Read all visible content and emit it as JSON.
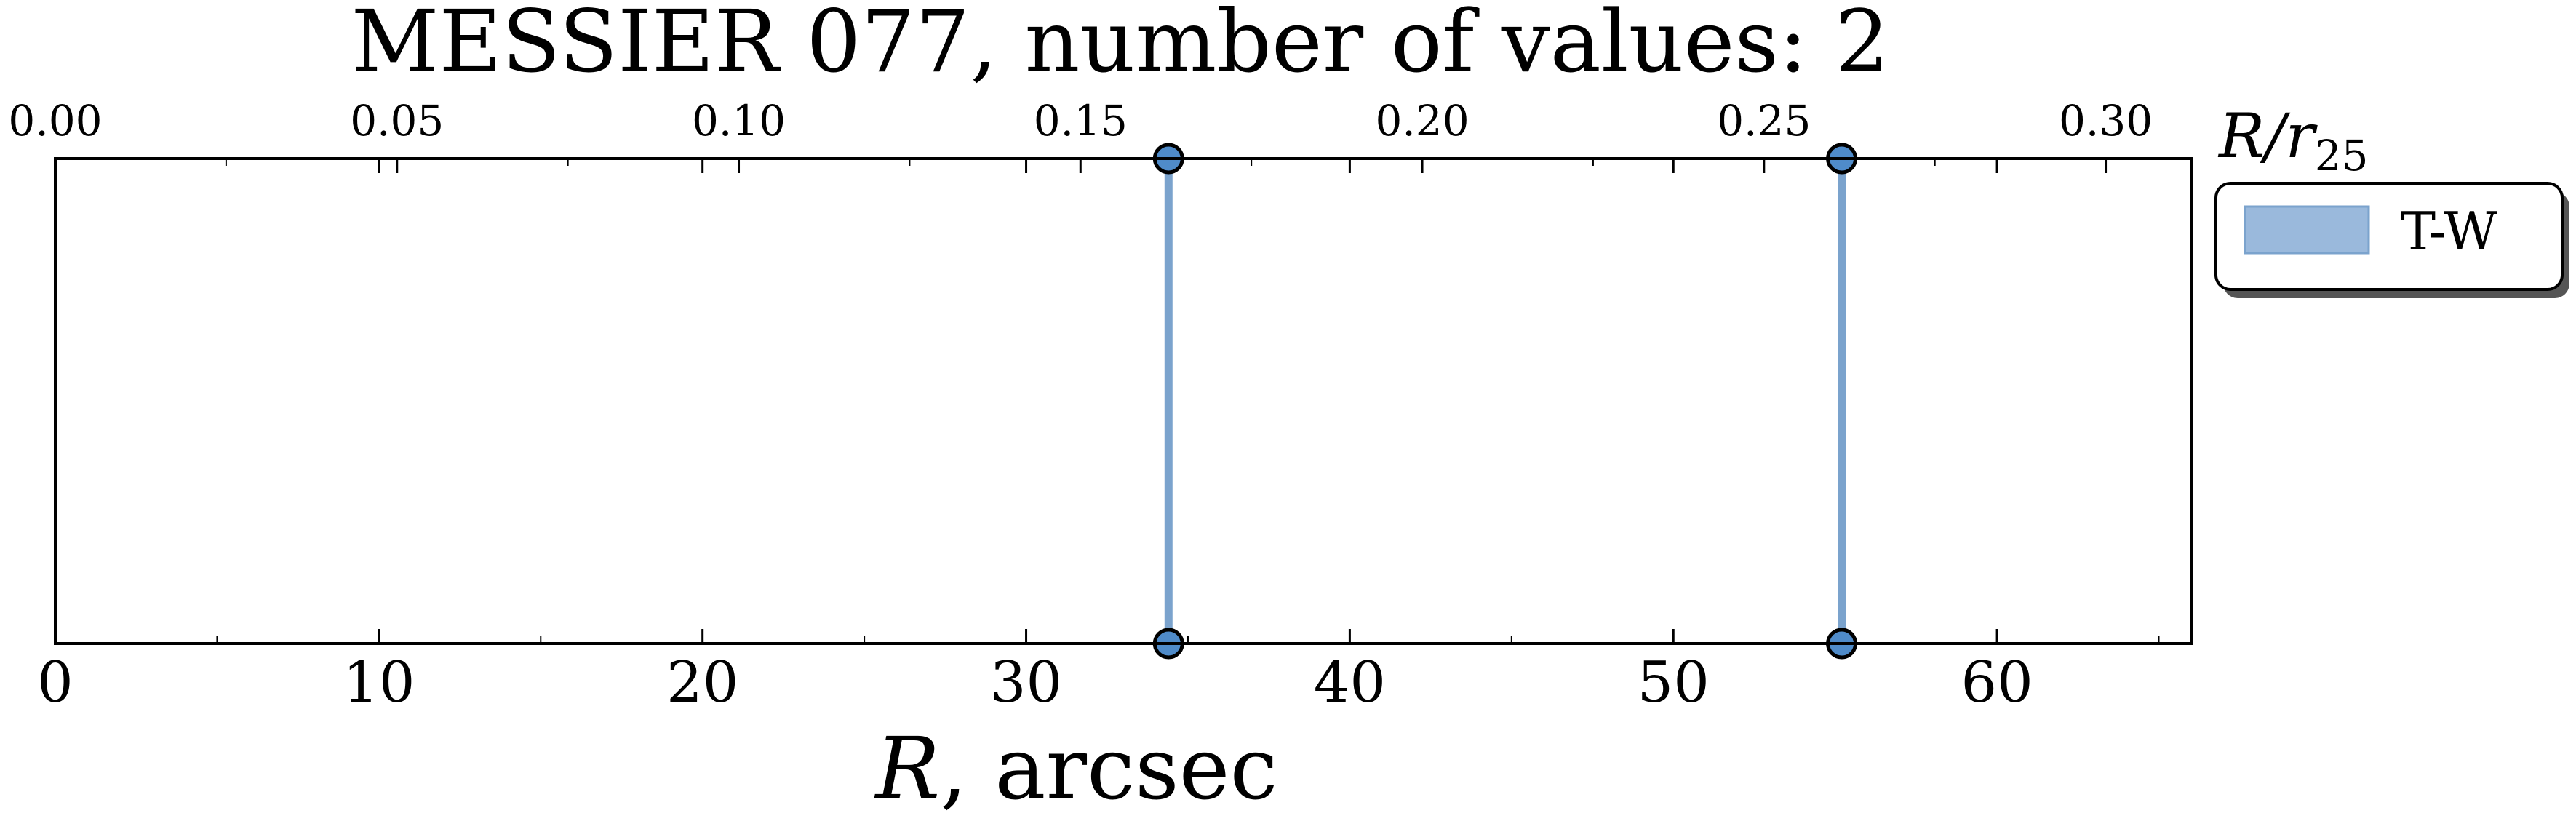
{
  "chart_data": {
    "type": "line",
    "title": "MESSIER 077, number of values: 2",
    "xlabel": {
      "symbol": "R",
      "unit": ", arcsec"
    },
    "xlim": [
      0,
      66
    ],
    "x_ticks": [
      0,
      10,
      20,
      30,
      40,
      50,
      60
    ],
    "top_axis": {
      "label": {
        "symbol": "R/r",
        "subscript": "25"
      },
      "xlim": [
        0,
        0.3125
      ],
      "ticks": [
        "0.00",
        "0.05",
        "0.10",
        "0.15",
        "0.20",
        "0.25",
        "0.30"
      ],
      "tick_values": [
        0.0,
        0.05,
        0.1,
        0.15,
        0.2,
        0.25,
        0.3
      ]
    },
    "series": [
      {
        "name": "T-W",
        "x": [
          34.4,
          55.2
        ],
        "color": "#7ba3cd",
        "marker_color": "#4f8bc9"
      }
    ],
    "legend_placement": "right, outside top",
    "grid": false
  }
}
